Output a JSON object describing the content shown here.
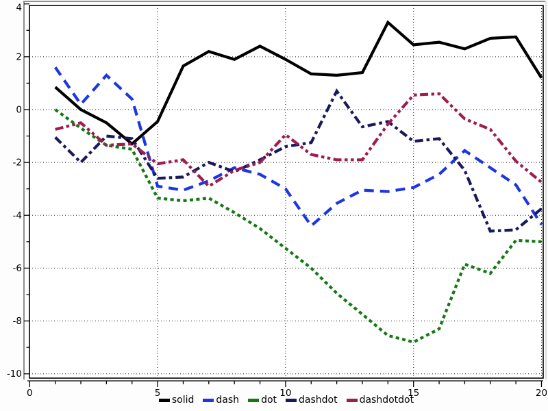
{
  "window": {
    "background": "#fdfdfd",
    "bevel_color": "#8f8f8f",
    "plot_background": "#ffffff",
    "frame_color": "#000000",
    "grid_color": "#1a1a1a"
  },
  "chart_data": {
    "type": "line",
    "title": "",
    "xlabel": "",
    "ylabel": "",
    "xlim": [
      0,
      20.1
    ],
    "ylim": [
      -10.1,
      4
    ],
    "grid": true,
    "legend_position": "bottom-center",
    "x": [
      1,
      2,
      3,
      4,
      5,
      6,
      7,
      8,
      9,
      10,
      11,
      12,
      13,
      14,
      15,
      16,
      17,
      18,
      19,
      20
    ],
    "x_ticks": [
      {
        "v": 0,
        "label": "0"
      },
      {
        "v": 5,
        "label": "5"
      },
      {
        "v": 10,
        "label": "10"
      },
      {
        "v": 15,
        "label": "15"
      },
      {
        "v": 20,
        "label": "20"
      }
    ],
    "y_ticks": [
      {
        "v": 4,
        "label": "4"
      },
      {
        "v": 2,
        "label": "2"
      },
      {
        "v": 0,
        "label": "0"
      },
      {
        "v": -2,
        "label": "-2"
      },
      {
        "v": -4,
        "label": "-4"
      },
      {
        "v": -6,
        "label": "-6"
      },
      {
        "v": -8,
        "label": "-8"
      },
      {
        "v": -10,
        "label": "-10"
      }
    ],
    "grid_x": [
      5,
      10,
      15,
      20
    ],
    "grid_y": [
      2,
      0,
      -2,
      -4,
      -6,
      -8,
      -10
    ],
    "series": [
      {
        "label": "solid",
        "color": "#000000",
        "dash": [],
        "values": [
          0.85,
          0.0,
          -0.5,
          -1.3,
          -0.45,
          1.65,
          2.2,
          1.9,
          2.4,
          1.9,
          1.35,
          1.3,
          1.4,
          3.3,
          2.45,
          2.55,
          2.3,
          2.7,
          2.75,
          1.2
        ]
      },
      {
        "label": "dash",
        "color": "#1d36e4",
        "dash": [
          14,
          9
        ],
        "values": [
          1.6,
          0.2,
          1.3,
          0.4,
          -2.9,
          -3.05,
          -2.7,
          -2.2,
          -2.45,
          -3.0,
          -4.4,
          -3.55,
          -3.05,
          -3.1,
          -2.95,
          -2.45,
          -1.55,
          -2.2,
          -2.85,
          -4.35
        ]
      },
      {
        "label": "dot",
        "color": "#147814",
        "dash": [
          5,
          4.5
        ],
        "values": [
          0.0,
          -0.7,
          -1.35,
          -1.5,
          -3.35,
          -3.45,
          -3.35,
          -3.9,
          -4.5,
          -5.25,
          -6.0,
          -6.95,
          -7.75,
          -8.55,
          -8.8,
          -8.3,
          -5.85,
          -6.2,
          -4.95,
          -5.0
        ]
      },
      {
        "label": "dashdot",
        "color": "#18185f",
        "dash": [
          12,
          5,
          4.5,
          5
        ],
        "values": [
          -1.05,
          -2.0,
          -1.0,
          -1.1,
          -2.6,
          -2.55,
          -2.0,
          -2.35,
          -1.9,
          -1.4,
          -1.25,
          0.7,
          -0.65,
          -0.45,
          -1.2,
          -1.1,
          -2.3,
          -4.6,
          -4.55,
          -3.75
        ]
      },
      {
        "label": "dashdotdot",
        "color": "#9e1c4e",
        "dash": [
          12,
          4.5,
          4.5,
          4.5,
          4.5,
          4.5
        ],
        "values": [
          -0.75,
          -0.5,
          -1.35,
          -1.3,
          -2.05,
          -1.9,
          -2.9,
          -2.3,
          -2.0,
          -0.95,
          -1.7,
          -1.9,
          -1.9,
          -0.55,
          0.55,
          0.6,
          -0.35,
          -0.75,
          -1.95,
          -2.75
        ]
      }
    ]
  }
}
